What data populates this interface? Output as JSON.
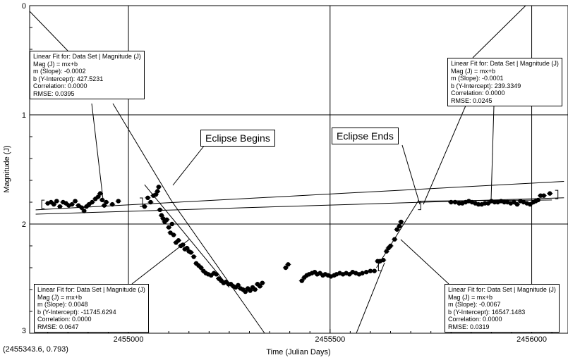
{
  "chart_data": {
    "type": "scatter",
    "xlabel": "Time (Julian Days)",
    "ylabel": "Magnitude (J)",
    "xlim": [
      2454755,
      2456090
    ],
    "ylim": [
      3,
      0
    ],
    "x_ticks": [
      {
        "value": 2455000,
        "label": "2455000"
      },
      {
        "value": 2455500,
        "label": "2455500"
      },
      {
        "value": 2456000,
        "label": "2456000"
      }
    ],
    "y_ticks": [
      {
        "value": 0,
        "label": "0"
      },
      {
        "value": 1,
        "label": "1"
      },
      {
        "value": 2,
        "label": "2"
      },
      {
        "value": 3,
        "label": "3"
      }
    ],
    "grid": true,
    "marker_color": "#000000",
    "series": [
      {
        "points": [
          [
            2454800,
            1.81
          ],
          [
            2454808,
            1.8
          ],
          [
            2454815,
            1.82
          ],
          [
            2454822,
            1.79
          ],
          [
            2454830,
            1.84
          ],
          [
            2454838,
            1.8
          ],
          [
            2454845,
            1.81
          ],
          [
            2454852,
            1.83
          ],
          [
            2454860,
            1.82
          ],
          [
            2454868,
            1.79
          ],
          [
            2454876,
            1.83
          ],
          [
            2454884,
            1.85
          ],
          [
            2454890,
            1.88
          ],
          [
            2454896,
            1.84
          ],
          [
            2454902,
            1.82
          ],
          [
            2454910,
            1.8
          ],
          [
            2454918,
            1.77
          ],
          [
            2454925,
            1.75
          ],
          [
            2454930,
            1.72
          ],
          [
            2454935,
            1.78
          ],
          [
            2454940,
            1.83
          ],
          [
            2454945,
            1.8
          ],
          [
            2454960,
            1.82
          ],
          [
            2454975,
            1.79
          ],
          [
            2455040,
            1.84
          ],
          [
            2455048,
            1.76
          ],
          [
            2455055,
            1.8
          ],
          [
            2455062,
            1.74
          ],
          [
            2455068,
            1.73
          ],
          [
            2455072,
            1.7
          ],
          [
            2455075,
            1.66
          ],
          [
            2455078,
            1.87
          ],
          [
            2455082,
            1.92
          ],
          [
            2455086,
            1.95
          ],
          [
            2455090,
            1.98
          ],
          [
            2455095,
            1.96
          ],
          [
            2455100,
            2.03
          ],
          [
            2455104,
            2.08
          ],
          [
            2455108,
            2.0
          ],
          [
            2455112,
            2.1
          ],
          [
            2455118,
            2.17
          ],
          [
            2455124,
            2.15
          ],
          [
            2455130,
            2.2
          ],
          [
            2455135,
            2.19
          ],
          [
            2455140,
            2.23
          ],
          [
            2455145,
            2.22
          ],
          [
            2455150,
            2.25
          ],
          [
            2455155,
            2.26
          ],
          [
            2455162,
            2.3
          ],
          [
            2455168,
            2.36
          ],
          [
            2455174,
            2.38
          ],
          [
            2455180,
            2.4
          ],
          [
            2455186,
            2.43
          ],
          [
            2455192,
            2.45
          ],
          [
            2455198,
            2.46
          ],
          [
            2455205,
            2.47
          ],
          [
            2455212,
            2.45
          ],
          [
            2455218,
            2.46
          ],
          [
            2455224,
            2.5
          ],
          [
            2455230,
            2.52
          ],
          [
            2455236,
            2.54
          ],
          [
            2455242,
            2.53
          ],
          [
            2455248,
            2.55
          ],
          [
            2455254,
            2.55
          ],
          [
            2455260,
            2.57
          ],
          [
            2455266,
            2.58
          ],
          [
            2455272,
            2.56
          ],
          [
            2455278,
            2.59
          ],
          [
            2455284,
            2.6
          ],
          [
            2455290,
            2.62
          ],
          [
            2455296,
            2.59
          ],
          [
            2455302,
            2.61
          ],
          [
            2455308,
            2.58
          ],
          [
            2455314,
            2.6
          ],
          [
            2455320,
            2.55
          ],
          [
            2455326,
            2.57
          ],
          [
            2455332,
            2.54
          ],
          [
            2455390,
            2.4
          ],
          [
            2455396,
            2.37
          ],
          [
            2455430,
            2.52
          ],
          [
            2455436,
            2.49
          ],
          [
            2455442,
            2.47
          ],
          [
            2455448,
            2.46
          ],
          [
            2455455,
            2.45
          ],
          [
            2455462,
            2.44
          ],
          [
            2455468,
            2.46
          ],
          [
            2455475,
            2.45
          ],
          [
            2455482,
            2.47
          ],
          [
            2455488,
            2.46
          ],
          [
            2455495,
            2.47
          ],
          [
            2455502,
            2.48
          ],
          [
            2455510,
            2.47
          ],
          [
            2455516,
            2.46
          ],
          [
            2455524,
            2.45
          ],
          [
            2455532,
            2.46
          ],
          [
            2455540,
            2.45
          ],
          [
            2455548,
            2.46
          ],
          [
            2455556,
            2.44
          ],
          [
            2455564,
            2.45
          ],
          [
            2455572,
            2.46
          ],
          [
            2455580,
            2.45
          ],
          [
            2455590,
            2.44
          ],
          [
            2455600,
            2.43
          ],
          [
            2455610,
            2.43
          ],
          [
            2455618,
            2.34
          ],
          [
            2455624,
            2.34
          ],
          [
            2455632,
            2.33
          ],
          [
            2455640,
            2.25
          ],
          [
            2455645,
            2.22
          ],
          [
            2455650,
            2.2
          ],
          [
            2455660,
            2.14
          ],
          [
            2455666,
            2.05
          ],
          [
            2455672,
            2.02
          ],
          [
            2455676,
            1.98
          ],
          [
            2455800,
            1.8
          ],
          [
            2455810,
            1.8
          ],
          [
            2455820,
            1.81
          ],
          [
            2455828,
            1.81
          ],
          [
            2455836,
            1.8
          ],
          [
            2455844,
            1.79
          ],
          [
            2455852,
            1.8
          ],
          [
            2455860,
            1.81
          ],
          [
            2455868,
            1.82
          ],
          [
            2455876,
            1.82
          ],
          [
            2455884,
            1.81
          ],
          [
            2455892,
            1.81
          ],
          [
            2455900,
            1.79
          ],
          [
            2455908,
            1.8
          ],
          [
            2455916,
            1.8
          ],
          [
            2455924,
            1.79
          ],
          [
            2455932,
            1.8
          ],
          [
            2455940,
            1.8
          ],
          [
            2455948,
            1.81
          ],
          [
            2455956,
            1.8
          ],
          [
            2455964,
            1.82
          ],
          [
            2455972,
            1.79
          ],
          [
            2455980,
            1.8
          ],
          [
            2455988,
            1.81
          ],
          [
            2455996,
            1.82
          ],
          [
            2456004,
            1.8
          ],
          [
            2456010,
            1.79
          ],
          [
            2456016,
            1.78
          ],
          [
            2456022,
            1.74
          ],
          [
            2456030,
            1.74
          ],
          [
            2456045,
            1.72
          ]
        ]
      }
    ],
    "fit_lines": [
      {
        "x_range": [
          2454770,
          2456080
        ],
        "m": -0.0002,
        "b": 427.5231
      },
      {
        "x_range": [
          2454770,
          2456080
        ],
        "m": -0.0001,
        "b": 239.3349
      }
    ]
  },
  "readout": "(2455343.6, 0.793)",
  "fit_boxes": [
    {
      "title": "Linear Fit for: Data Set | Magnitude (J)",
      "equation": "Mag (J) = mx+b",
      "slope": "m (Slope): -0.0002",
      "intercept": "b (Y-Intercept): 427.5231",
      "correlation": "Correlation: 0.0000",
      "rmse": "RMSE: 0.0395"
    },
    {
      "title": "Linear Fit for: Data Set | Magnitude (J)",
      "equation": "Mag (J) = mx+b",
      "slope": "m (Slope): -0.0001",
      "intercept": "b (Y-Intercept): 239.3349",
      "correlation": "Correlation: 0.0000",
      "rmse": "RMSE: 0.0245"
    },
    {
      "title": "Linear Fit for: Data Set | Magnitude (J)",
      "equation": "Mag (J) = mx+b",
      "slope": "m (Slope): 0.0048",
      "intercept": "b (Y-Intercept): -11745.6294",
      "correlation": "Correlation: 0.0000",
      "rmse": "RMSE: 0.0647"
    },
    {
      "title": "Linear Fit for: Data Set | Magnitude (J)",
      "equation": "Mag (J) = mx+b",
      "slope": "m (Slope): -0.0067",
      "intercept": "b (Y-Intercept): 16547.1483",
      "correlation": "Correlation: 0.0000",
      "rmse": "RMSE: 0.0319"
    }
  ],
  "callouts": {
    "eclipse_begins": "Eclipse Begins",
    "eclipse_ends": "Eclipse Ends"
  }
}
